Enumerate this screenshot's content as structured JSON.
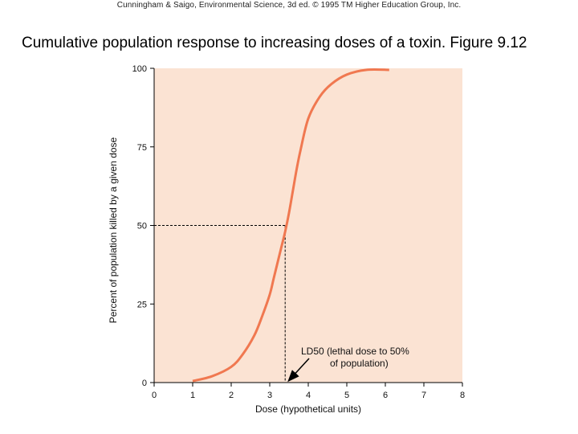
{
  "header": {
    "credit": "Cunningham & Saigo, Environmental Science, 3d ed. © 1995 TM Higher Education Group, Inc.",
    "title": "Cumulative population response to increasing doses of a toxin. Figure 9.12"
  },
  "colors": {
    "plot_background": "#fbe3d3",
    "curve": "#f07850",
    "axis": "#000000",
    "arrow": "#000000"
  },
  "chart_data": {
    "type": "line",
    "title": "",
    "xlabel": "Dose (hypothetical units)",
    "ylabel": "Percent of population killed by a given dose",
    "xlim": [
      0,
      8
    ],
    "ylim": [
      0,
      100
    ],
    "x_ticks": [
      "0",
      "1",
      "2",
      "3",
      "4",
      "5",
      "6",
      "7",
      "8"
    ],
    "y_ticks": [
      "0",
      "25",
      "50",
      "75",
      "100"
    ],
    "grid": false,
    "series": [
      {
        "x": [
          1.0,
          1.5,
          2.0,
          2.3,
          2.6,
          2.8,
          3.0,
          3.1,
          3.2,
          3.3,
          3.4,
          3.5,
          3.6,
          3.7,
          3.8,
          4.0,
          4.3,
          4.6,
          5.0,
          5.5,
          6.1
        ],
        "y": [
          0.5,
          2,
          5,
          9,
          15,
          21,
          28,
          33,
          38,
          43,
          48,
          54,
          61,
          68,
          74,
          84,
          91,
          95,
          98,
          99.5,
          99.5
        ]
      }
    ],
    "reference_lines": {
      "ld50_x": 3.4,
      "ld50_y": 50
    },
    "annotation": {
      "line1": "LD50 (lethal dose to 50%",
      "line2": "of population)"
    }
  }
}
